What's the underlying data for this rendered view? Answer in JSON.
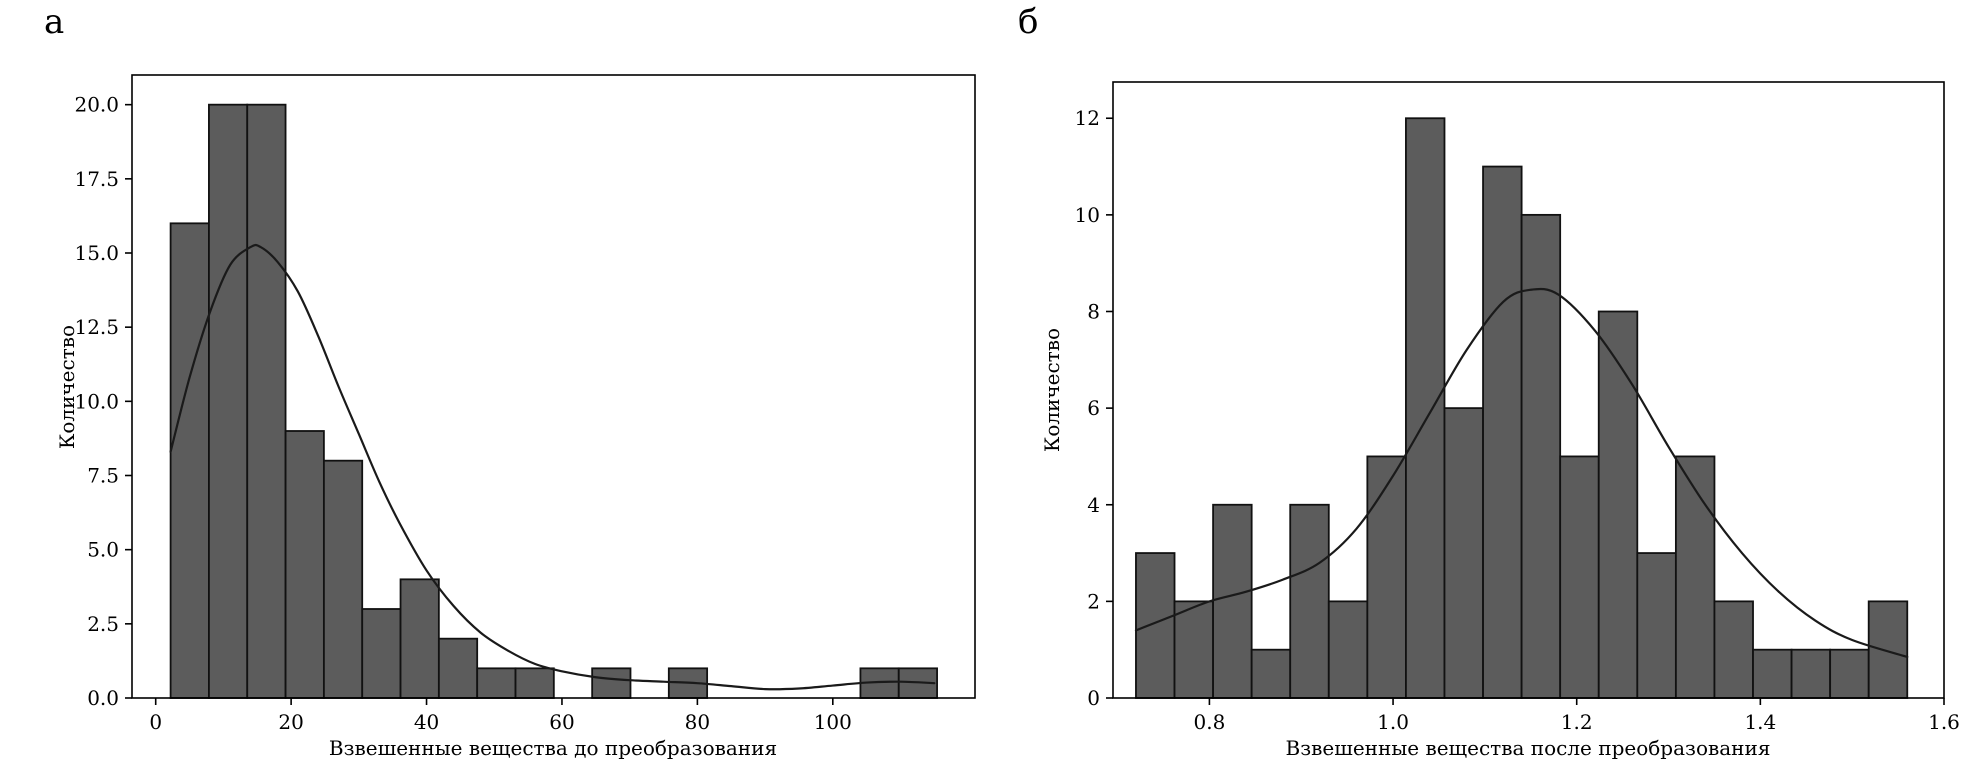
{
  "page": {
    "background": "#ffffff"
  },
  "chart_data": [
    {
      "type": "bar",
      "panel": "а",
      "title": "",
      "xlabel": "Взвешенные вещества до преобразования",
      "ylabel": "Количество",
      "xlim": [
        -3.5,
        121
      ],
      "ylim": [
        0,
        21
      ],
      "xtick_values": [
        0,
        20,
        40,
        60,
        80,
        100
      ],
      "xtick_labels": [
        "0",
        "20",
        "40",
        "60",
        "80",
        "100"
      ],
      "ytick_values": [
        0,
        2.5,
        5,
        7.5,
        10,
        12.5,
        15,
        17.5,
        20
      ],
      "ytick_labels": [
        "0.0",
        "2.5",
        "5.0",
        "7.5",
        "10.0",
        "12.5",
        "15.0",
        "17.5",
        "20.0"
      ],
      "bins": {
        "start": 2.2,
        "width": 5.66
      },
      "values": [
        16,
        20,
        20,
        9,
        8,
        3,
        4,
        2,
        1,
        1,
        0,
        1,
        0,
        1,
        0,
        0,
        0,
        0,
        1,
        1
      ],
      "kde": {
        "x": [
          2.2,
          5,
          8,
          11,
          14,
          15.5,
          18,
          21,
          24,
          27,
          30,
          33,
          36,
          40,
          44,
          48,
          52,
          56,
          60,
          65,
          70,
          75,
          80,
          85,
          90,
          95,
          100,
          105,
          110,
          115
        ],
        "y": [
          8.3,
          10.8,
          13.0,
          14.6,
          15.2,
          15.2,
          14.7,
          13.7,
          12.2,
          10.5,
          8.9,
          7.3,
          5.9,
          4.3,
          3.1,
          2.2,
          1.6,
          1.15,
          0.9,
          0.7,
          0.6,
          0.55,
          0.5,
          0.4,
          0.3,
          0.32,
          0.42,
          0.52,
          0.55,
          0.5
        ]
      },
      "grid": false,
      "legend": null,
      "bar_fill": "#5c5c5c",
      "bar_edge": "#111111",
      "line_color": "#1a1a1a"
    },
    {
      "type": "bar",
      "panel": "б",
      "title": "",
      "xlabel": "Взвешенные вещества после преобразования",
      "ylabel": "Количество",
      "xlim": [
        0.695,
        1.6
      ],
      "ylim": [
        0,
        12.75
      ],
      "xtick_values": [
        0.8,
        1.0,
        1.2,
        1.4,
        1.6
      ],
      "xtick_labels": [
        "0.8",
        "1.0",
        "1.2",
        "1.4",
        "1.6"
      ],
      "ytick_values": [
        0,
        2,
        4,
        6,
        8,
        10,
        12
      ],
      "ytick_labels": [
        "0",
        "2",
        "4",
        "6",
        "8",
        "10",
        "12"
      ],
      "bins": {
        "start": 0.72,
        "width": 0.042
      },
      "values": [
        3,
        2,
        4,
        1,
        4,
        2,
        5,
        12,
        6,
        11,
        10,
        5,
        8,
        3,
        5,
        2,
        1,
        1,
        1,
        2
      ],
      "kde": {
        "x": [
          0.72,
          0.76,
          0.8,
          0.84,
          0.88,
          0.92,
          0.96,
          1.0,
          1.04,
          1.08,
          1.12,
          1.15,
          1.18,
          1.22,
          1.26,
          1.3,
          1.34,
          1.38,
          1.42,
          1.46,
          1.5,
          1.56
        ],
        "y": [
          1.4,
          1.7,
          2.0,
          2.2,
          2.45,
          2.8,
          3.5,
          4.6,
          5.9,
          7.2,
          8.2,
          8.45,
          8.35,
          7.6,
          6.5,
          5.2,
          4.0,
          3.0,
          2.2,
          1.6,
          1.2,
          0.85
        ]
      },
      "grid": false,
      "legend": null,
      "bar_fill": "#5c5c5c",
      "bar_edge": "#111111",
      "line_color": "#1a1a1a"
    }
  ]
}
